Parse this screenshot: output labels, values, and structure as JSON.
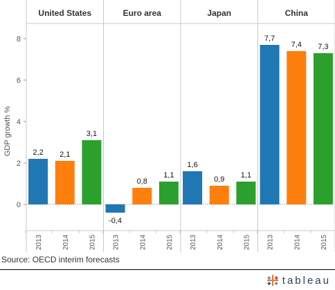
{
  "chart_data": {
    "type": "bar",
    "ylabel": "GDP growth %",
    "ylim": [
      -1,
      9
    ],
    "yticks": [
      0,
      2,
      4,
      6,
      8
    ],
    "grid": false,
    "panels": [
      {
        "name": "United States",
        "categories": [
          "2013",
          "2014",
          "2015"
        ],
        "values": [
          2.2,
          2.1,
          3.1
        ],
        "labels": [
          "2,2",
          "2,1",
          "3,1"
        ]
      },
      {
        "name": "Euro area",
        "categories": [
          "2013",
          "2014",
          "2015"
        ],
        "values": [
          -0.4,
          0.8,
          1.1
        ],
        "labels": [
          "-0,4",
          "0,8",
          "1,1"
        ]
      },
      {
        "name": "Japan",
        "categories": [
          "2013",
          "2014",
          "2015"
        ],
        "values": [
          1.6,
          0.9,
          1.1
        ],
        "labels": [
          "1,6",
          "0,9",
          "1,1"
        ]
      },
      {
        "name": "China",
        "categories": [
          "2013",
          "2014",
          "2015"
        ],
        "values": [
          7.7,
          7.4,
          7.3
        ],
        "labels": [
          "7,7",
          "7,4",
          "7,3"
        ]
      }
    ],
    "colors": {
      "2013": "#1f77b4",
      "2014": "#ff7f0e",
      "2015": "#2ca02c"
    }
  },
  "source_text": "Source: OECD interim forecasts",
  "brand": {
    "text": "tableau",
    "icon": "tableau-logo-icon"
  }
}
